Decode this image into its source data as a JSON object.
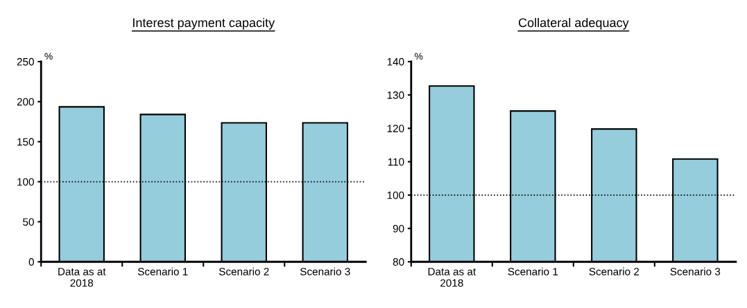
{
  "chart_data": [
    {
      "type": "bar",
      "title": "Interest payment capacity",
      "ylabel": "%",
      "categories": [
        "Data as at\n2018",
        "Scenario 1",
        "Scenario 2",
        "Scenario 3"
      ],
      "values": [
        193.5,
        184,
        173.5,
        173.5
      ],
      "color": "#96cddd",
      "ylim": [
        0,
        250
      ],
      "yticks": [
        0,
        50,
        100,
        150,
        200,
        250
      ],
      "ref_lines": [
        {
          "axis": "y",
          "value": 100,
          "color": "#000000",
          "line_style": "dotted"
        }
      ],
      "grid": false,
      "legend": false
    },
    {
      "type": "bar",
      "title": "Collateral adequacy",
      "ylabel": "%",
      "categories": [
        "Data as at\n2018",
        "Scenario 1",
        "Scenario 2",
        "Scenario 3"
      ],
      "values": [
        132.7,
        125.2,
        119.8,
        110.8
      ],
      "color": "#96cddd",
      "ylim": [
        80,
        140
      ],
      "yticks": [
        80,
        90,
        100,
        110,
        120,
        130,
        140
      ],
      "ref_lines": [
        {
          "axis": "y",
          "value": 100,
          "color": "#000000",
          "line_style": "dotted"
        }
      ],
      "grid": false,
      "legend": false
    }
  ]
}
